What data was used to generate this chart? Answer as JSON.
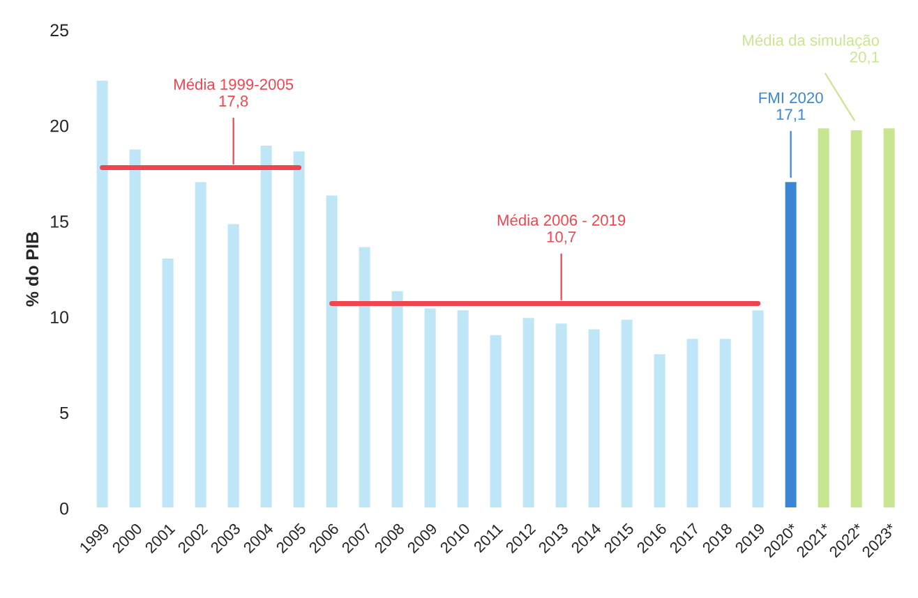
{
  "chart_data": {
    "type": "bar",
    "ylabel": "% do PIB",
    "categories": [
      "1999",
      "2000",
      "2001",
      "2002",
      "2003",
      "2004",
      "2005",
      "2006",
      "2007",
      "2008",
      "2009",
      "2010",
      "2011",
      "2012",
      "2013",
      "2014",
      "2015",
      "2016",
      "2017",
      "2018",
      "2019",
      "2020*",
      "2021*",
      "2022*",
      "2023*"
    ],
    "series": [
      {
        "colors": [
          "#bfe6f7",
          "#bfe6f7",
          "#bfe6f7",
          "#bfe6f7",
          "#bfe6f7",
          "#bfe6f7",
          "#bfe6f7",
          "#bfe6f7",
          "#bfe6f7",
          "#bfe6f7",
          "#bfe6f7",
          "#bfe6f7",
          "#bfe6f7",
          "#bfe6f7",
          "#bfe6f7",
          "#bfe6f7",
          "#bfe6f7",
          "#bfe6f7",
          "#bfe6f7",
          "#bfe6f7",
          "#bfe6f7",
          "#3a86d4",
          "#c8e690",
          "#c8e690",
          "#c8e690"
        ],
        "values": [
          22.4,
          18.8,
          13.1,
          17.1,
          14.9,
          19.0,
          18.7,
          16.4,
          13.7,
          11.4,
          10.5,
          10.4,
          9.1,
          10.0,
          9.7,
          9.4,
          9.9,
          8.1,
          8.9,
          8.9,
          10.4,
          17.1,
          19.9,
          19.8,
          19.9
        ]
      },
      {
        "type": "line",
        "color": "#f0444f",
        "values": [
          17.8,
          17.8,
          17.8,
          17.8,
          17.8,
          17.8,
          17.8,
          null,
          null,
          null,
          null,
          null,
          null,
          null,
          null,
          null,
          null,
          null,
          null,
          null,
          null,
          null,
          null,
          null,
          null
        ]
      },
      {
        "type": "line",
        "color": "#f0444f",
        "values": [
          null,
          null,
          null,
          null,
          null,
          null,
          null,
          10.7,
          10.7,
          10.7,
          10.7,
          10.7,
          10.7,
          10.7,
          10.7,
          10.7,
          10.7,
          10.7,
          10.7,
          10.7,
          10.7,
          null,
          null,
          null,
          null
        ]
      }
    ],
    "annotations": [
      {
        "text": "Média 1999-2005\n17,8",
        "x": "2003",
        "y": 17.8
      },
      {
        "text": "Média 2006 - 2019\n10,7",
        "x": "2013",
        "y": 10.7
      },
      {
        "text": "FMI 2020\n17,1",
        "x": "2020*",
        "y": 17.1
      },
      {
        "text": "Média da simulação\n20,1",
        "x": "2022*",
        "y": 20.1
      }
    ],
    "ylim": [
      0,
      25
    ],
    "yticks": [
      0,
      5,
      10,
      15,
      20,
      25
    ],
    "grid": false,
    "legend": false
  }
}
